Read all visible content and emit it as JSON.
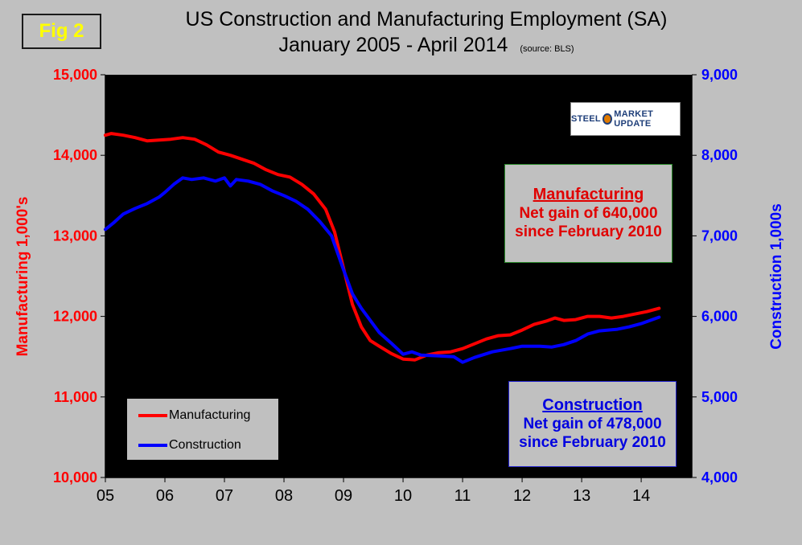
{
  "figure": {
    "fig_label": "Fig 2",
    "title_line1": "US Construction and Manufacturing Employment (SA)",
    "title_line2": "January 2005 - April 2014",
    "source": "(source: BLS)",
    "logo_text_left": "STEEL",
    "logo_text_right": "MARKET UPDATE"
  },
  "annotations": {
    "manufacturing": {
      "head": "Manufacturing",
      "line1": "Net gain of 640,000",
      "line2": "since February 2010"
    },
    "construction": {
      "head": "Construction",
      "line1": "Net gain of 478,000",
      "line2": "since February 2010"
    }
  },
  "colors": {
    "manufacturing": "#ff0000",
    "construction": "#0000ff",
    "plot_bg": "#000000",
    "page_bg": "#c0c0c0"
  },
  "chart_data": {
    "type": "line",
    "title": "US Construction and Manufacturing Employment (SA) January 2005 - April 2014",
    "xlabel": "",
    "ylabel_left": "Manufacturing  1,000's",
    "ylabel_right": "Construction  1,000s",
    "x_ticks": [
      "05",
      "06",
      "07",
      "08",
      "09",
      "10",
      "11",
      "12",
      "13",
      "14"
    ],
    "x_tick_values": [
      2005,
      2006,
      2007,
      2008,
      2009,
      2010,
      2011,
      2012,
      2013,
      2014
    ],
    "xlim": [
      2005,
      2014.85
    ],
    "ylim_left": [
      10000,
      15000
    ],
    "ylim_right": [
      4000,
      9000
    ],
    "yticks_left": [
      "10,000",
      "11,000",
      "12,000",
      "13,000",
      "14,000",
      "15,000"
    ],
    "yticks_right": [
      "4,000",
      "5,000",
      "6,000",
      "7,000",
      "8,000",
      "9,000"
    ],
    "yticks_left_values": [
      10000,
      11000,
      12000,
      13000,
      14000,
      15000
    ],
    "yticks_right_values": [
      4000,
      5000,
      6000,
      7000,
      8000,
      9000
    ],
    "legend": [
      "Manufacturing",
      "Construction"
    ],
    "legend_position": "bottom-left",
    "grid": false,
    "series": [
      {
        "name": "Manufacturing",
        "axis": "left",
        "points": [
          [
            2005.0,
            14250
          ],
          [
            2005.1,
            14270
          ],
          [
            2005.3,
            14250
          ],
          [
            2005.5,
            14220
          ],
          [
            2005.7,
            14180
          ],
          [
            2005.9,
            14190
          ],
          [
            2006.1,
            14200
          ],
          [
            2006.3,
            14220
          ],
          [
            2006.5,
            14200
          ],
          [
            2006.7,
            14130
          ],
          [
            2006.9,
            14040
          ],
          [
            2007.1,
            14000
          ],
          [
            2007.3,
            13950
          ],
          [
            2007.5,
            13900
          ],
          [
            2007.7,
            13820
          ],
          [
            2007.9,
            13760
          ],
          [
            2008.1,
            13730
          ],
          [
            2008.3,
            13640
          ],
          [
            2008.5,
            13520
          ],
          [
            2008.7,
            13330
          ],
          [
            2008.85,
            13050
          ],
          [
            2009.0,
            12600
          ],
          [
            2009.15,
            12150
          ],
          [
            2009.3,
            11870
          ],
          [
            2009.45,
            11700
          ],
          [
            2009.6,
            11630
          ],
          [
            2009.8,
            11540
          ],
          [
            2010.0,
            11470
          ],
          [
            2010.2,
            11460
          ],
          [
            2010.4,
            11520
          ],
          [
            2010.6,
            11550
          ],
          [
            2010.8,
            11560
          ],
          [
            2011.0,
            11600
          ],
          [
            2011.2,
            11660
          ],
          [
            2011.4,
            11720
          ],
          [
            2011.6,
            11760
          ],
          [
            2011.8,
            11770
          ],
          [
            2012.0,
            11830
          ],
          [
            2012.2,
            11900
          ],
          [
            2012.4,
            11940
          ],
          [
            2012.55,
            11980
          ],
          [
            2012.7,
            11950
          ],
          [
            2012.9,
            11960
          ],
          [
            2013.1,
            12000
          ],
          [
            2013.3,
            12000
          ],
          [
            2013.5,
            11980
          ],
          [
            2013.7,
            12000
          ],
          [
            2013.9,
            12030
          ],
          [
            2014.1,
            12060
          ],
          [
            2014.3,
            12100
          ]
        ]
      },
      {
        "name": "Construction",
        "axis": "right",
        "points": [
          [
            2005.0,
            7080
          ],
          [
            2005.15,
            7170
          ],
          [
            2005.3,
            7270
          ],
          [
            2005.5,
            7340
          ],
          [
            2005.7,
            7400
          ],
          [
            2005.9,
            7480
          ],
          [
            2006.0,
            7540
          ],
          [
            2006.15,
            7640
          ],
          [
            2006.3,
            7720
          ],
          [
            2006.45,
            7700
          ],
          [
            2006.65,
            7720
          ],
          [
            2006.85,
            7680
          ],
          [
            2007.0,
            7720
          ],
          [
            2007.1,
            7620
          ],
          [
            2007.2,
            7700
          ],
          [
            2007.4,
            7680
          ],
          [
            2007.6,
            7640
          ],
          [
            2007.8,
            7560
          ],
          [
            2008.0,
            7500
          ],
          [
            2008.2,
            7430
          ],
          [
            2008.4,
            7330
          ],
          [
            2008.6,
            7180
          ],
          [
            2008.8,
            7000
          ],
          [
            2009.0,
            6580
          ],
          [
            2009.15,
            6280
          ],
          [
            2009.3,
            6100
          ],
          [
            2009.45,
            5950
          ],
          [
            2009.6,
            5800
          ],
          [
            2009.8,
            5670
          ],
          [
            2010.0,
            5530
          ],
          [
            2010.15,
            5560
          ],
          [
            2010.3,
            5520
          ],
          [
            2010.6,
            5510
          ],
          [
            2010.85,
            5500
          ],
          [
            2011.0,
            5430
          ],
          [
            2011.2,
            5490
          ],
          [
            2011.5,
            5560
          ],
          [
            2011.8,
            5600
          ],
          [
            2012.0,
            5630
          ],
          [
            2012.3,
            5630
          ],
          [
            2012.5,
            5620
          ],
          [
            2012.7,
            5650
          ],
          [
            2012.9,
            5700
          ],
          [
            2013.1,
            5780
          ],
          [
            2013.3,
            5820
          ],
          [
            2013.6,
            5840
          ],
          [
            2013.8,
            5870
          ],
          [
            2014.0,
            5910
          ],
          [
            2014.3,
            5990
          ]
        ]
      }
    ]
  }
}
